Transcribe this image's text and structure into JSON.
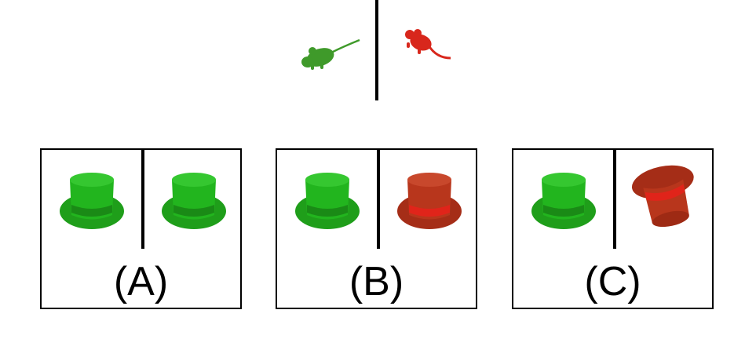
{
  "prompt": {
    "left_icon": "mouse-icon",
    "left_color": "#3f9a2a",
    "right_icon": "mouse-icon",
    "right_color": "#d8271c"
  },
  "options": [
    {
      "label": "(A)",
      "left": {
        "icon": "top-hat-icon",
        "color": "#22b51e",
        "orientation": "upright"
      },
      "right": {
        "icon": "top-hat-icon",
        "color": "#22b51e",
        "orientation": "upright"
      }
    },
    {
      "label": "(B)",
      "left": {
        "icon": "top-hat-icon",
        "color": "#22b51e",
        "orientation": "upright"
      },
      "right": {
        "icon": "top-hat-icon",
        "color": "#b8361c",
        "orientation": "upright"
      }
    },
    {
      "label": "(C)",
      "left": {
        "icon": "top-hat-icon",
        "color": "#22b51e",
        "orientation": "upright"
      },
      "right": {
        "icon": "top-hat-icon",
        "color": "#b8361c",
        "orientation": "tilted"
      }
    }
  ]
}
